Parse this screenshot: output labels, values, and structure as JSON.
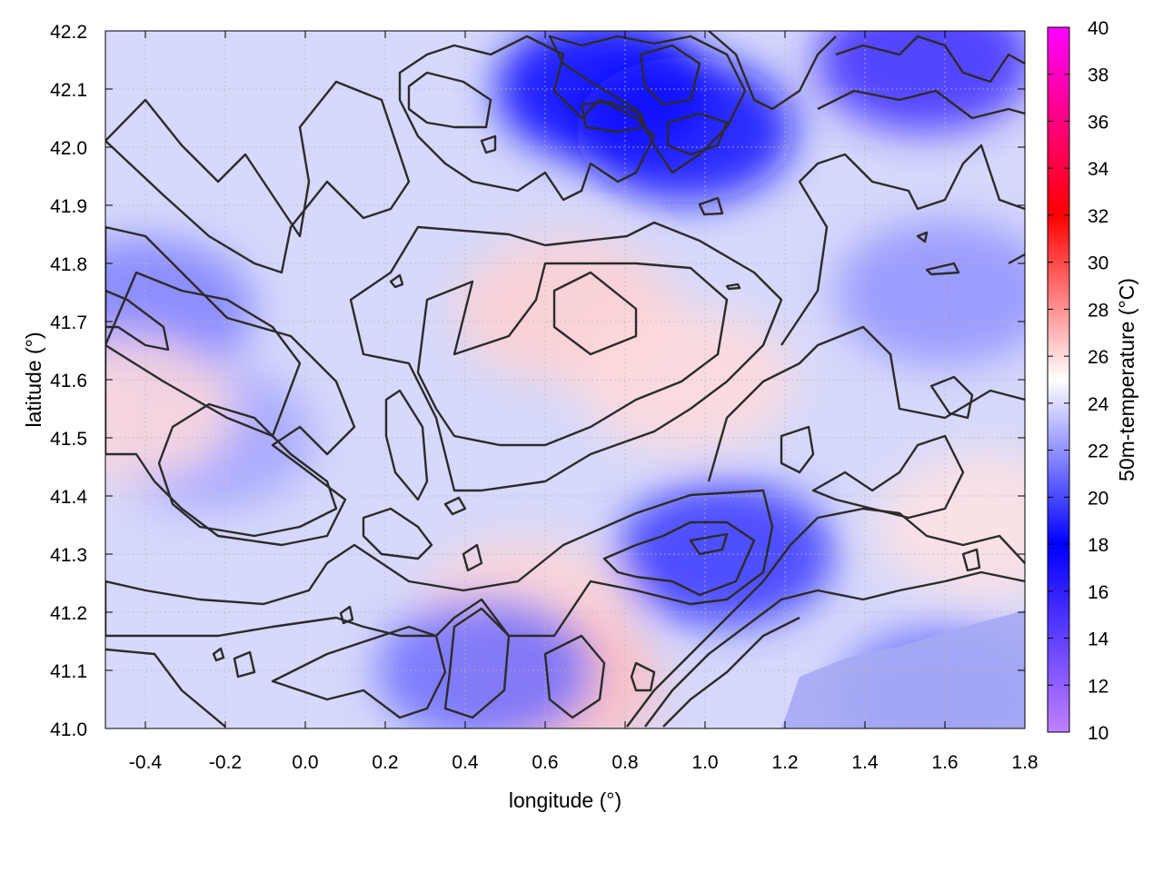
{
  "chart_data": {
    "type": "heatmap",
    "xlabel": "longitude (°)",
    "ylabel": "latitude (°)",
    "colorbar_label": "50m-temperature (°C)",
    "xlim": [
      -0.5,
      1.8
    ],
    "ylim": [
      41.0,
      42.2
    ],
    "x_ticks": [
      "-0.4",
      "-0.2",
      "0.0",
      "0.2",
      "0.4",
      "0.6",
      "0.8",
      "1.0",
      "1.2",
      "1.4",
      "1.6",
      "1.8"
    ],
    "y_ticks": [
      "41.0",
      "41.1",
      "41.2",
      "41.3",
      "41.4",
      "41.5",
      "41.6",
      "41.7",
      "41.8",
      "41.9",
      "42.0",
      "42.1",
      "42.2"
    ],
    "colorbar_range": [
      10,
      40
    ],
    "colorbar_ticks": [
      "10",
      "12",
      "14",
      "16",
      "18",
      "20",
      "22",
      "24",
      "26",
      "28",
      "30",
      "32",
      "34",
      "36",
      "38",
      "40"
    ],
    "colormap": [
      {
        "value": 10,
        "color": "#c080ff"
      },
      {
        "value": 18,
        "color": "#0000ff"
      },
      {
        "value": 25,
        "color": "#ffffff"
      },
      {
        "value": 32,
        "color": "#ff0000"
      },
      {
        "value": 40,
        "color": "#ff00ff"
      }
    ],
    "grid": true,
    "fields": [
      {
        "lon": -0.25,
        "lat": 41.5,
        "temp": 22.5
      },
      {
        "lon": 0.65,
        "lat": 41.72,
        "temp": 26.3
      },
      {
        "lon": 0.95,
        "lat": 41.6,
        "temp": 26.0
      },
      {
        "lon": 0.55,
        "lat": 41.2,
        "temp": 26.2
      },
      {
        "lon": 0.62,
        "lat": 41.08,
        "temp": 26.8
      },
      {
        "lon": 0.75,
        "lat": 42.1,
        "temp": 18.0
      },
      {
        "lon": 0.95,
        "lat": 42.03,
        "temp": 18.5
      },
      {
        "lon": 1.55,
        "lat": 42.15,
        "temp": 15.5
      },
      {
        "lon": 1.05,
        "lat": 41.3,
        "temp": 19.5
      },
      {
        "lon": 0.45,
        "lat": 41.1,
        "temp": 21.0
      },
      {
        "lon": 1.6,
        "lat": 41.05,
        "temp": 21.0
      },
      {
        "lon": -0.4,
        "lat": 41.72,
        "temp": 21.5
      },
      {
        "lon": 1.6,
        "lat": 41.75,
        "temp": 22.0
      },
      {
        "lon": 1.7,
        "lat": 41.35,
        "temp": 25.8
      },
      {
        "lon": -0.45,
        "lat": 41.55,
        "temp": 26.0
      }
    ]
  }
}
